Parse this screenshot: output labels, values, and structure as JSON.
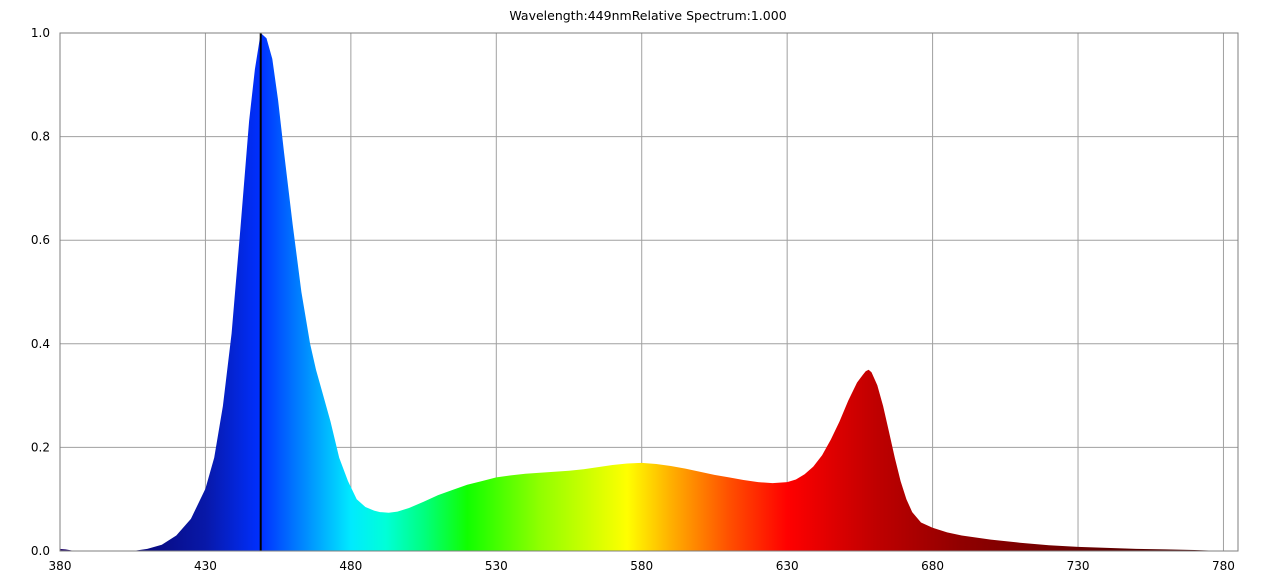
{
  "readout": {
    "wavelength_label": "Wavelength:",
    "wavelength_value": "449nm",
    "spectrum_label": "Relative Spectrum:",
    "spectrum_value": "1.000"
  },
  "colors": {
    "grid": "#a0a0a0",
    "frame": "#7f7f7f",
    "cursor": "#000000",
    "background": "#ffffff"
  },
  "chart_data": {
    "type": "area",
    "title": "Wavelength:449nm  Relative Spectrum:1.000",
    "xlabel": "",
    "ylabel": "",
    "xlim": [
      380,
      785
    ],
    "ylim": [
      0,
      1.0
    ],
    "grid": true,
    "x_ticks": [
      "380",
      "430",
      "480",
      "530",
      "580",
      "630",
      "680",
      "730",
      "780"
    ],
    "y_ticks": [
      "0.0",
      "0.2",
      "0.4",
      "0.6",
      "0.8",
      "1.0"
    ],
    "cursor_x": 449,
    "x": [
      380,
      382,
      385,
      405,
      410,
      415,
      420,
      425,
      430,
      433,
      436,
      439,
      442,
      445,
      447,
      449,
      450,
      451,
      453,
      455,
      457,
      460,
      463,
      466,
      468,
      470,
      473,
      476,
      479,
      482,
      485,
      488,
      490,
      493,
      496,
      500,
      505,
      510,
      515,
      520,
      525,
      530,
      535,
      540,
      545,
      550,
      555,
      560,
      565,
      570,
      575,
      580,
      585,
      590,
      595,
      600,
      605,
      610,
      615,
      620,
      625,
      630,
      633,
      636,
      639,
      642,
      645,
      648,
      651,
      654,
      656,
      657,
      658,
      659,
      661,
      663,
      665,
      667,
      669,
      671,
      673,
      676,
      680,
      685,
      690,
      700,
      710,
      720,
      730,
      740,
      750,
      760,
      770,
      775
    ],
    "values": [
      0.004,
      0.003,
      0.0,
      0.0,
      0.004,
      0.012,
      0.03,
      0.062,
      0.12,
      0.18,
      0.28,
      0.42,
      0.62,
      0.83,
      0.93,
      1.0,
      0.995,
      0.99,
      0.95,
      0.87,
      0.77,
      0.63,
      0.5,
      0.4,
      0.35,
      0.31,
      0.25,
      0.18,
      0.135,
      0.1,
      0.085,
      0.078,
      0.075,
      0.074,
      0.076,
      0.083,
      0.095,
      0.108,
      0.118,
      0.128,
      0.135,
      0.142,
      0.146,
      0.149,
      0.151,
      0.153,
      0.155,
      0.158,
      0.162,
      0.166,
      0.169,
      0.17,
      0.168,
      0.164,
      0.159,
      0.153,
      0.147,
      0.142,
      0.137,
      0.133,
      0.131,
      0.133,
      0.138,
      0.148,
      0.163,
      0.185,
      0.215,
      0.25,
      0.29,
      0.325,
      0.34,
      0.347,
      0.35,
      0.345,
      0.32,
      0.28,
      0.23,
      0.18,
      0.135,
      0.1,
      0.075,
      0.055,
      0.045,
      0.036,
      0.03,
      0.022,
      0.016,
      0.011,
      0.008,
      0.006,
      0.004,
      0.003,
      0.002,
      0.001
    ]
  }
}
